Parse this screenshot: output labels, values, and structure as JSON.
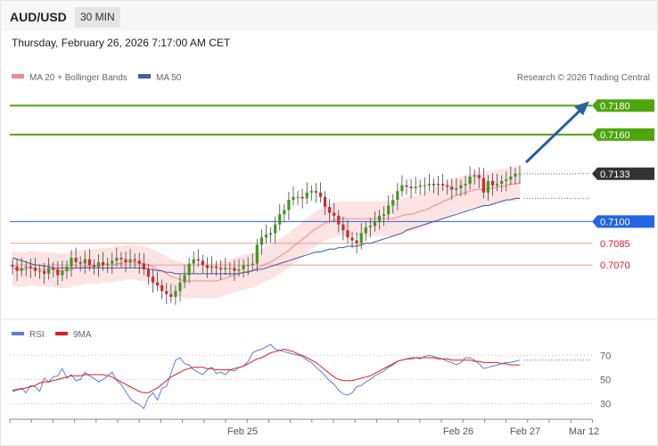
{
  "header": {
    "symbol": "AUD/USD",
    "timeframe": "30 MIN"
  },
  "date_line": "Thursday, February 26, 2026 7:17:00 AM CET",
  "colors": {
    "target": "#4ea60e",
    "pivot": "#2266e3",
    "support": "#e11b22",
    "price": "#333333",
    "arrow": "#2a5fa0",
    "ma20": "#f08a8a",
    "ma50": "#3d5fa3",
    "band": "#fddcdc",
    "rsi": "#5b7fd6",
    "rsi_ma": "#e11b22"
  },
  "chart_data": [
    {
      "type": "candlestick",
      "title": "",
      "legend": {
        "ma20": "MA 20 + Bollinger Bands",
        "ma50": "MA 50"
      },
      "watermark": "Research © 2026 Trading Central",
      "x_ticks": [
        "Feb 25",
        "Feb 26",
        "Feb 27",
        "Mar 12"
      ],
      "y_range": [
        0.7035,
        0.7195
      ],
      "levels": [
        {
          "value": 0.718,
          "label": "0.7180",
          "kind": "target"
        },
        {
          "value": 0.716,
          "label": "0.7160",
          "kind": "target"
        },
        {
          "value": 0.7133,
          "label": "0.7133",
          "kind": "price"
        },
        {
          "value": 0.71,
          "label": "0.7100",
          "kind": "pivot"
        },
        {
          "value": 0.7085,
          "label": "0.7085",
          "kind": "support"
        },
        {
          "value": 0.707,
          "label": "0.7070",
          "kind": "support"
        }
      ],
      "close": [
        0.7069,
        0.7066,
        0.7068,
        0.7069,
        0.7068,
        0.7066,
        0.7066,
        0.7064,
        0.7068,
        0.7067,
        0.7063,
        0.7066,
        0.7069,
        0.7075,
        0.7072,
        0.7071,
        0.7074,
        0.707,
        0.7069,
        0.7072,
        0.707,
        0.7071,
        0.7073,
        0.7075,
        0.7074,
        0.7072,
        0.7074,
        0.7073,
        0.7071,
        0.7067,
        0.7062,
        0.7058,
        0.7056,
        0.7052,
        0.705,
        0.7048,
        0.7052,
        0.7058,
        0.7063,
        0.7071,
        0.7074,
        0.7073,
        0.707,
        0.7068,
        0.7069,
        0.7068,
        0.7067,
        0.7068,
        0.7068,
        0.7066,
        0.7067,
        0.707,
        0.707,
        0.7071,
        0.7084,
        0.7089,
        0.7091,
        0.7092,
        0.7098,
        0.7105,
        0.7108,
        0.7115,
        0.7117,
        0.7117,
        0.7116,
        0.712,
        0.7121,
        0.712,
        0.7117,
        0.711,
        0.7106,
        0.7104,
        0.7098,
        0.7094,
        0.7089,
        0.7087,
        0.7085,
        0.7092,
        0.7096,
        0.7097,
        0.71,
        0.7104,
        0.7105,
        0.7111,
        0.7115,
        0.7121,
        0.7125,
        0.7124,
        0.7123,
        0.7124,
        0.7125,
        0.7125,
        0.7126,
        0.7125,
        0.7126,
        0.7125,
        0.7124,
        0.7122,
        0.7123,
        0.7125,
        0.7126,
        0.7131,
        0.7132,
        0.713,
        0.712,
        0.7128,
        0.7125,
        0.7126,
        0.7128,
        0.7129,
        0.7131,
        0.7133,
        0.7133
      ],
      "ma20": [
        0.7068,
        0.7067,
        0.7067,
        0.7067,
        0.7068,
        0.7068,
        0.7067,
        0.7067,
        0.7067,
        0.7067,
        0.7066,
        0.7066,
        0.7066,
        0.7067,
        0.7068,
        0.7068,
        0.7069,
        0.7069,
        0.7069,
        0.7069,
        0.707,
        0.707,
        0.707,
        0.7071,
        0.7071,
        0.7072,
        0.7072,
        0.7072,
        0.7071,
        0.7071,
        0.707,
        0.7069,
        0.7067,
        0.7066,
        0.7064,
        0.7062,
        0.7061,
        0.706,
        0.7059,
        0.7059,
        0.7059,
        0.7059,
        0.7059,
        0.7059,
        0.7059,
        0.7059,
        0.706,
        0.7061,
        0.7062,
        0.7063,
        0.7064,
        0.7065,
        0.7066,
        0.7066,
        0.7068,
        0.7069,
        0.7071,
        0.7072,
        0.7074,
        0.7076,
        0.7078,
        0.708,
        0.7083,
        0.7085,
        0.7088,
        0.709,
        0.7093,
        0.7095,
        0.7097,
        0.7099,
        0.71,
        0.7101,
        0.7102,
        0.7102,
        0.7102,
        0.7102,
        0.7102,
        0.7102,
        0.7102,
        0.7102,
        0.7102,
        0.7102,
        0.7102,
        0.7102,
        0.7102,
        0.7103,
        0.7104,
        0.7105,
        0.7105,
        0.7106,
        0.7107,
        0.7108,
        0.7109,
        0.7111,
        0.7112,
        0.7114,
        0.7115,
        0.7117,
        0.7118,
        0.7119,
        0.712,
        0.7121,
        0.7122,
        0.7122,
        0.7122,
        0.7123,
        0.7123,
        0.7124,
        0.7124,
        0.7125,
        0.7126,
        0.7126,
        0.7127
      ],
      "ma50": [
        0.7075,
        0.7074,
        0.7073,
        0.7072,
        0.7071,
        0.707,
        0.707,
        0.7069,
        0.7069,
        0.7068,
        0.7068,
        0.7068,
        0.7068,
        0.7068,
        0.7068,
        0.7068,
        0.7068,
        0.7068,
        0.7068,
        0.7068,
        0.7068,
        0.7068,
        0.7068,
        0.7068,
        0.7068,
        0.7068,
        0.7068,
        0.7068,
        0.7068,
        0.7068,
        0.7067,
        0.7067,
        0.7066,
        0.7066,
        0.7065,
        0.7065,
        0.7064,
        0.7064,
        0.7064,
        0.7064,
        0.7064,
        0.7064,
        0.7064,
        0.7064,
        0.7064,
        0.7064,
        0.7064,
        0.7064,
        0.7064,
        0.7064,
        0.7064,
        0.7065,
        0.7065,
        0.7066,
        0.7067,
        0.7067,
        0.7068,
        0.7069,
        0.707,
        0.7071,
        0.7072,
        0.7073,
        0.7074,
        0.7075,
        0.7076,
        0.7077,
        0.7078,
        0.7079,
        0.7079,
        0.708,
        0.7081,
        0.7081,
        0.7082,
        0.7082,
        0.7083,
        0.7083,
        0.7083,
        0.7084,
        0.7085,
        0.7085,
        0.7086,
        0.7087,
        0.7088,
        0.7089,
        0.709,
        0.7091,
        0.7092,
        0.7094,
        0.7095,
        0.7096,
        0.7097,
        0.7098,
        0.7099,
        0.71,
        0.7101,
        0.7102,
        0.7103,
        0.7104,
        0.7105,
        0.7106,
        0.7107,
        0.7108,
        0.7109,
        0.711,
        0.7111,
        0.7111,
        0.7112,
        0.7113,
        0.7114,
        0.7115,
        0.7115,
        0.7116,
        0.7116
      ],
      "band_width": 0.0012,
      "projection_target": 0.718
    },
    {
      "type": "line",
      "title": "",
      "legend": {
        "rsi": "RSI",
        "ma": "9MA"
      },
      "y_ticks": [
        70,
        50,
        30
      ],
      "y_range": [
        20,
        85
      ],
      "series": [
        {
          "name": "RSI",
          "values": [
            40,
            41,
            43,
            39,
            45,
            44,
            40,
            51,
            48,
            52,
            53,
            59,
            51,
            54,
            49,
            50,
            56,
            53,
            51,
            48,
            50,
            53,
            56,
            49,
            46,
            40,
            34,
            31,
            29,
            26,
            35,
            39,
            33,
            43,
            44,
            55,
            66,
            68,
            63,
            62,
            58,
            56,
            54,
            58,
            60,
            55,
            56,
            54,
            58,
            57,
            60,
            61,
            65,
            72,
            74,
            75,
            77,
            79,
            75,
            74,
            73,
            72,
            71,
            70,
            69,
            66,
            64,
            60,
            57,
            53,
            49,
            46,
            41,
            38,
            37,
            39,
            44,
            45,
            48,
            50,
            53,
            55,
            57,
            60,
            62,
            65,
            66,
            67,
            68,
            68,
            67,
            69,
            70,
            69,
            68,
            67,
            65,
            64,
            62,
            64,
            68,
            68,
            66,
            63,
            59,
            60,
            61,
            62,
            63,
            64,
            64,
            65,
            66
          ]
        },
        {
          "name": "9MA",
          "values": [
            41,
            42,
            42,
            43,
            44,
            45,
            47,
            48,
            48,
            49,
            50,
            51,
            52,
            53,
            53,
            53,
            54,
            54,
            54,
            54,
            54,
            53,
            52,
            50,
            48,
            46,
            44,
            42,
            40,
            39,
            39,
            41,
            43,
            46,
            49,
            52,
            54,
            56,
            58,
            59,
            60,
            60,
            60,
            59,
            59,
            58,
            58,
            58,
            58,
            59,
            60,
            61,
            63,
            65,
            67,
            68,
            70,
            72,
            73,
            74,
            75,
            74,
            73,
            71,
            70,
            68,
            66,
            64,
            61,
            58,
            55,
            52,
            50,
            49,
            49,
            49,
            50,
            51,
            52,
            53,
            55,
            57,
            59,
            61,
            63,
            65,
            66,
            67,
            67,
            68,
            68,
            68,
            68,
            68,
            67,
            67,
            67,
            66,
            66,
            66,
            66,
            66,
            65,
            65,
            64,
            64,
            64,
            64,
            63,
            63,
            62,
            62,
            62
          ]
        }
      ]
    }
  ]
}
